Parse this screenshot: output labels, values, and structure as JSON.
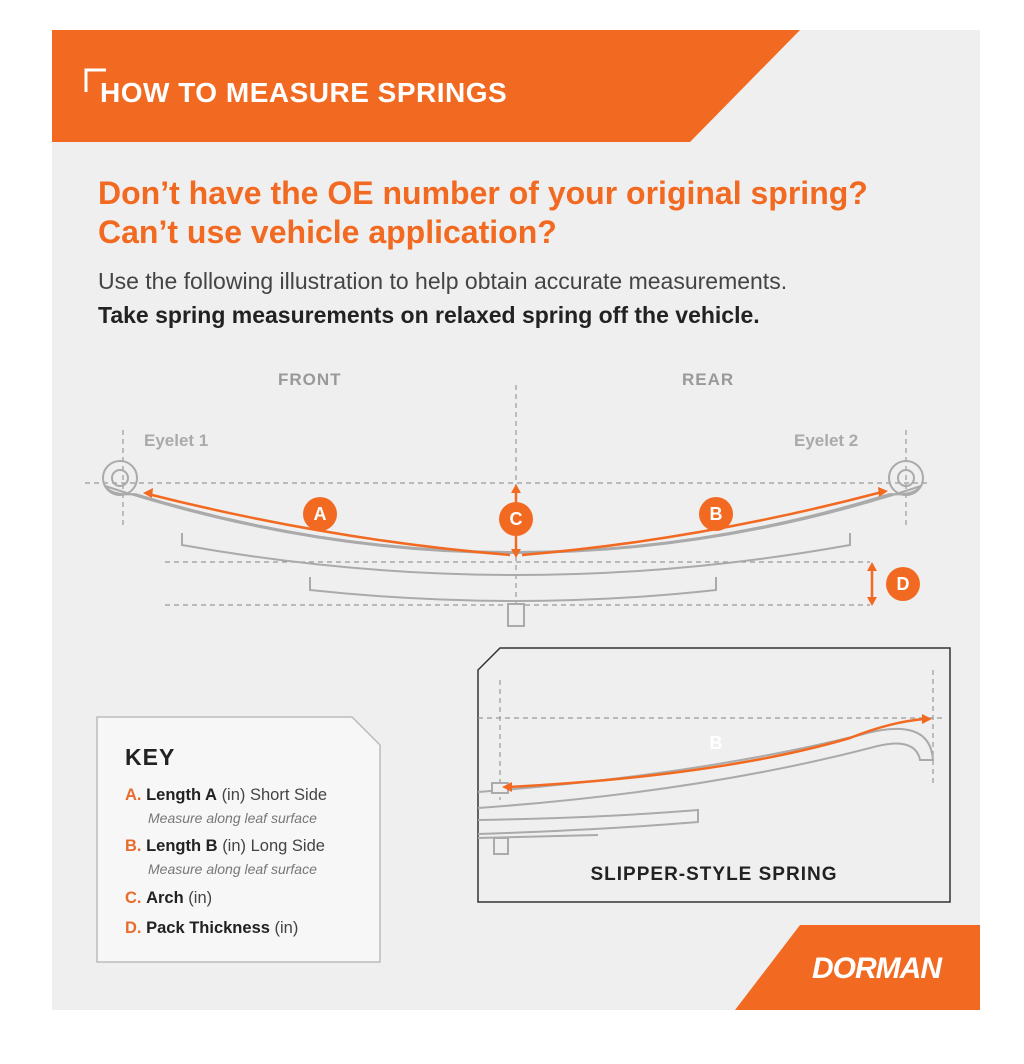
{
  "banner": {
    "title": "HOW TO MEASURE SPRINGS"
  },
  "headline": "Don’t have the OE number of your original spring? Can’t use vehicle application?",
  "intro": "Use the following illustration to help obtain accurate measurements.",
  "intro_bold": "Take spring measurements on relaxed spring off the vehicle.",
  "diagram": {
    "front_label": "FRONT",
    "rear_label": "REAR",
    "eyelet1": "Eyelet 1",
    "eyelet2": "Eyelet 2",
    "markers": [
      "A",
      "B",
      "C",
      "D"
    ]
  },
  "inset": {
    "marker": "B",
    "caption": "SLIPPER-STYLE SPRING"
  },
  "key": {
    "title": "KEY",
    "items": [
      {
        "letter": "A.",
        "name": "Length A",
        "unit": "(in)",
        "extra": "Short Side",
        "note": "Measure along leaf surface"
      },
      {
        "letter": "B.",
        "name": "Length B",
        "unit": "(in)",
        "extra": "Long Side",
        "note": "Measure along leaf surface"
      },
      {
        "letter": "C.",
        "name": "Arch",
        "unit": "(in)",
        "extra": "",
        "note": ""
      },
      {
        "letter": "D.",
        "name": "Pack Thickness",
        "unit": "(in)",
        "extra": "",
        "note": ""
      }
    ]
  },
  "logo": "DORMAN",
  "colors": {
    "accent": "#f26a21",
    "panel": "#efefef",
    "line": "#999999"
  }
}
